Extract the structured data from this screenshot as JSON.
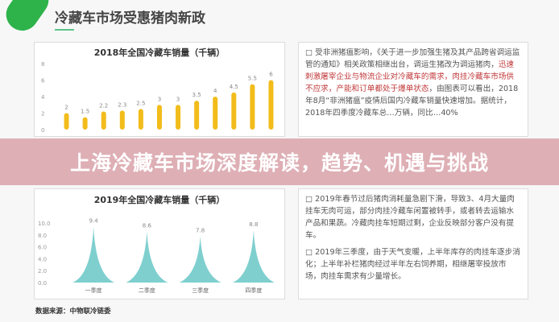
{
  "header": {
    "title": "冷藏车市场受惠猪肉新政",
    "brand_color": "#2db34a"
  },
  "overlay": {
    "headline": "上海冷藏车市场深度解读，趋势、机遇与挑战"
  },
  "chart_data": [
    {
      "type": "bar",
      "title": "2018年全国冷藏车销量（千辆）",
      "values": [
        2,
        1.5,
        2.2,
        2.3,
        2.5,
        3,
        3,
        3.5,
        4,
        4.5,
        5.5,
        6
      ],
      "data_labels": [
        "2",
        "1.5",
        "2.2",
        "2.3",
        "2.5",
        "3",
        "3",
        "3.5",
        "4",
        "4.5",
        "5.5",
        "6"
      ],
      "ylim": [
        0,
        8
      ],
      "yticks": [
        "0",
        "2",
        "4",
        "6",
        "8"
      ],
      "color": "#f2bc1b",
      "grid": false
    },
    {
      "type": "bar",
      "title": "2019年全国冷藏车销量（千辆）",
      "categories": [
        "一季度",
        "二季度",
        "三季度",
        "四季度"
      ],
      "values": [
        9.4,
        8.6,
        7.8,
        8.8
      ],
      "data_labels": [
        "9.4",
        "8.6",
        "7.8",
        "8.8"
      ],
      "ylim": [
        0,
        10
      ],
      "yticks": [
        "0.0",
        "2.0",
        "4.0",
        "6.0",
        "8.0",
        "10.0"
      ],
      "color": "#7fcfcf",
      "bar_shape": "spike",
      "grid": false
    }
  ],
  "text": {
    "p1_a": "受非洲猪瘟影响，《关于进一步加强生猪及其产品跨省调运监管的通知》相关政策相继出台，调运生猪改为调运猪肉，",
    "p1_red": "迅速刺激屠宰企业与物流企业对冷藏车的需求，肉挂冷藏车市场供不应求，产能和订单都处于爆单状态",
    "p1_b": "，由图表可以看出，2018年8月“非洲猪瘟”疫情后国内冷藏车销量快速增加。据统计，2018年四季度冷藏车总…万辆，同比…40%",
    "p2": "2019年春节过后猪肉消耗量急剧下滑，导致3、4月大量肉挂车无肉可运，部分肉挂冷藏车闲置被转手，或者转去运输水产品和果蔬。冷藏肉挂车短期过剩，企业反映部分客户没有提车。",
    "p3": "2019年三季度，由于天气变暖，上半年库存的肉挂车逐步消化；上半年补栏猪肉经过半年左右饲养期，相继屠宰投放市场，肉挂车需求有少量增长。",
    "bullet": "□"
  },
  "source": "数据来源：中物联冷链委"
}
